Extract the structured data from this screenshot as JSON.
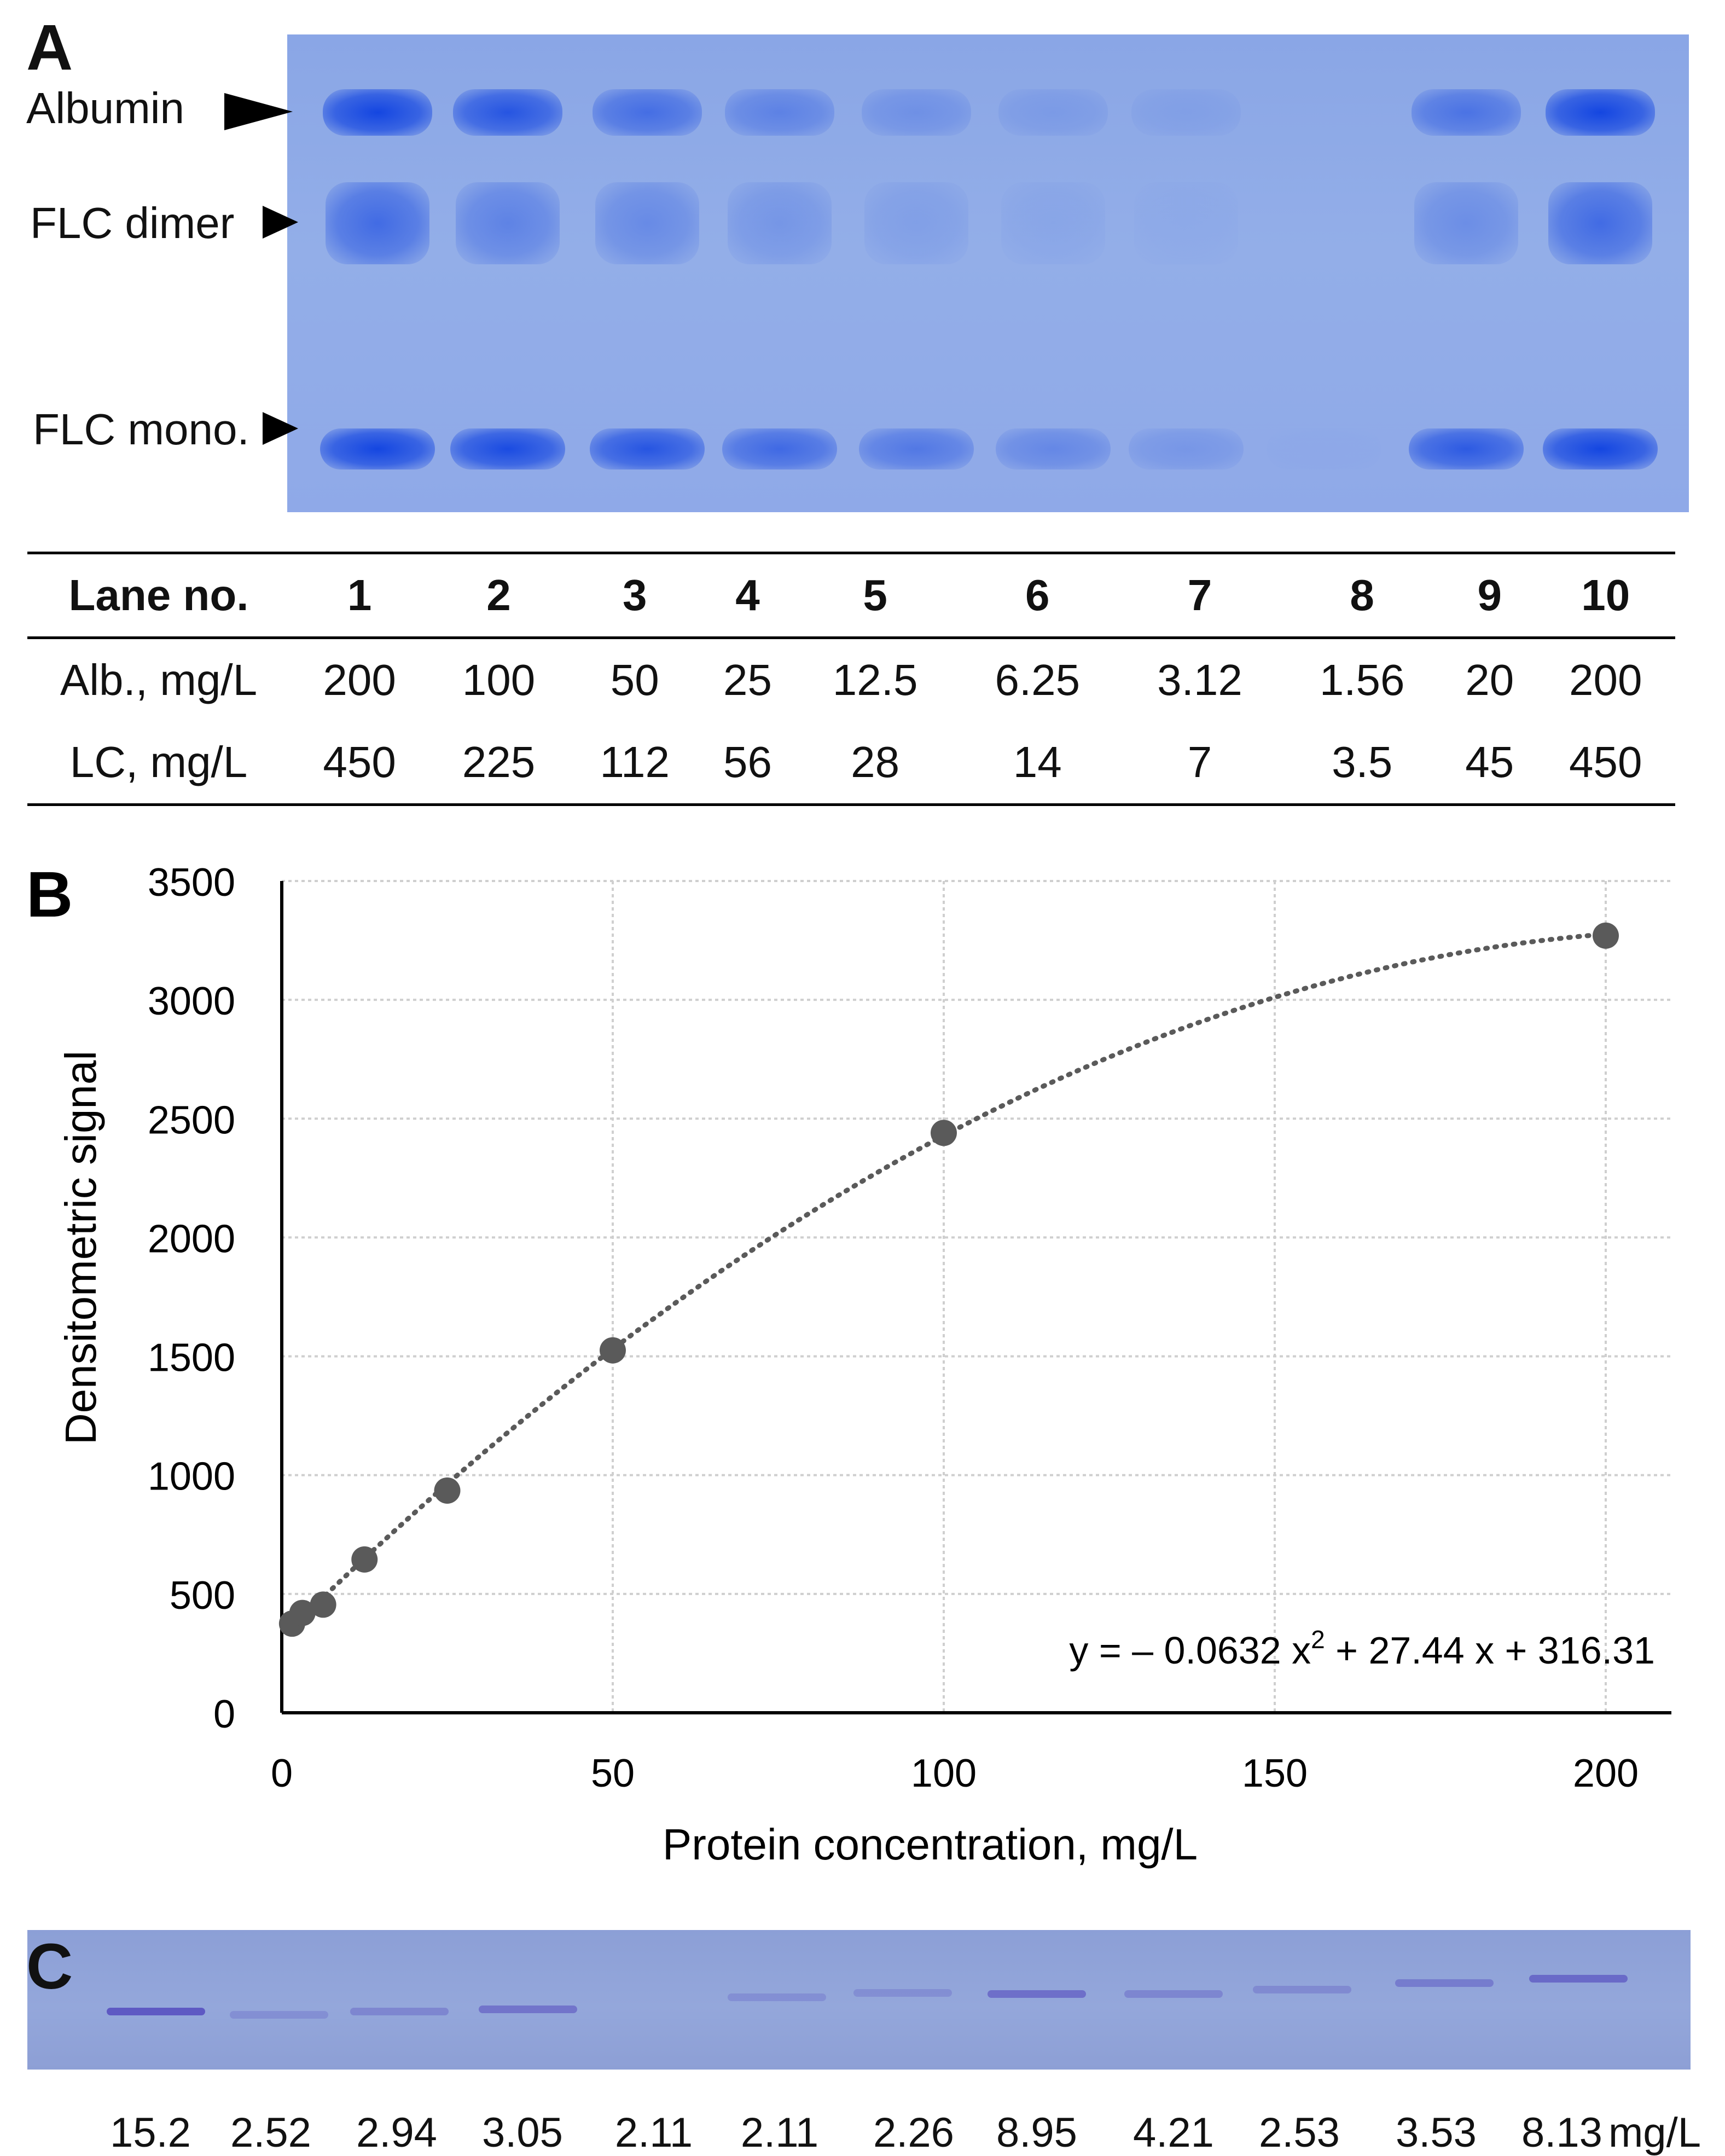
{
  "panels": {
    "a": "A",
    "b": "B",
    "c": "C"
  },
  "gel_a": {
    "band_labels": {
      "albumin": "Albumin",
      "flc_dimer": "FLC dimer",
      "flc_mono": "FLC mono."
    },
    "colors": {
      "gel_bg": "#93aee8",
      "band": "#1a4fe0"
    }
  },
  "lane_table": {
    "header": "Lane no.",
    "lanes": [
      "1",
      "2",
      "3",
      "4",
      "5",
      "6",
      "7",
      "8",
      "9",
      "10"
    ],
    "rows": [
      {
        "label": "Alb., mg/L",
        "values": [
          "200",
          "100",
          "50",
          "25",
          "12.5",
          "6.25",
          "3.12",
          "1.56",
          "20",
          "200"
        ]
      },
      {
        "label": "LC, mg/L",
        "values": [
          "450",
          "225",
          "112",
          "56",
          "28",
          "14",
          "7",
          "3.5",
          "45",
          "450"
        ]
      }
    ]
  },
  "chart_data": {
    "type": "scatter",
    "title": "",
    "xlabel": "Protein concentration, mg/L",
    "ylabel": "Densitometric signal",
    "xlim": [
      0,
      200
    ],
    "ylim": [
      0,
      3500
    ],
    "xticks": [
      "0",
      "50",
      "100",
      "150",
      "200"
    ],
    "yticks": [
      "0",
      "500",
      "1000",
      "1500",
      "2000",
      "2500",
      "3000",
      "3500"
    ],
    "grid": true,
    "x": [
      1.56,
      3.12,
      6.25,
      12.5,
      25,
      50,
      100,
      200
    ],
    "y": [
      375,
      420,
      455,
      645,
      935,
      1525,
      2440,
      3270
    ],
    "trendline": {
      "type": "polynomial",
      "a": -0.0632,
      "b": 27.44,
      "c": 316.31
    },
    "equation": {
      "prefix": "y = – 0.0632 x",
      "sup": "2",
      "suffix": " + 27.44 x + 316.31"
    },
    "colors": {
      "point": "#5a5a5a",
      "trend": "#5a5a5a",
      "grid": "#cfcfcf"
    }
  },
  "gel_c": {
    "concentrations": [
      "15.2",
      "2.52",
      "2.94",
      "3.05",
      "2.11",
      "2.11",
      "2.26",
      "8.95",
      "4.21",
      "2.53",
      "3.53",
      "8.13"
    ],
    "unit": "mg/L",
    "colors": {
      "gel_bg": "#94a7db",
      "band": "#5b55c0"
    }
  }
}
